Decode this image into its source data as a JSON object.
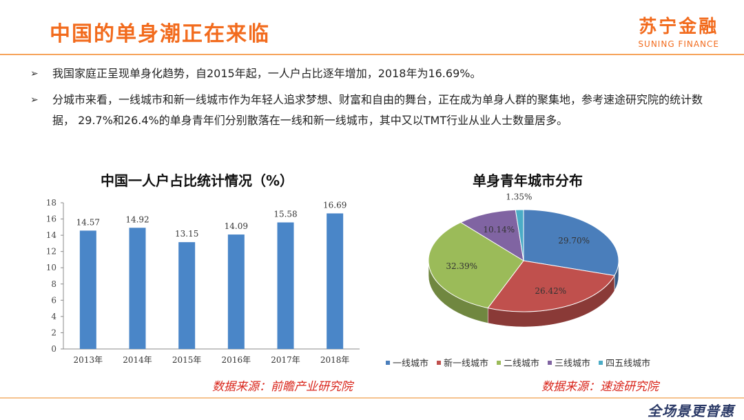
{
  "header": {
    "title": "中国的单身潮正在来临",
    "logo_cn": "苏宁金融",
    "logo_en": "SUNING FINANCE"
  },
  "bullets": [
    {
      "mark": "➢",
      "text": "我国家庭正呈现单身化趋势，自2015年起，一人户占比逐年增加，2018年为16.69%。"
    },
    {
      "mark": "➢",
      "text": "分城市来看，一线城市和新一线城市作为年轻人追求梦想、财富和自由的舞台，正在成为单身人群的聚集地，参考速途研究院的统计数据， 29.7%和26.4%的单身青年们分别散落在一线和新一线城市，其中又以TMT行业从业人士数量居多。"
    }
  ],
  "chart_data": [
    {
      "type": "bar",
      "title": "中国一人户占比统计情况（%）",
      "categories": [
        "2013年",
        "2014年",
        "2015年",
        "2016年",
        "2017年",
        "2018年"
      ],
      "values": [
        14.57,
        14.92,
        13.15,
        14.09,
        15.58,
        16.69
      ],
      "data_labels": [
        "14.57",
        "14.92",
        "13.15",
        "14.09",
        "15.58",
        "16.69"
      ],
      "ylim": [
        0,
        18
      ],
      "yticks": [
        "0",
        "2",
        "4",
        "6",
        "8",
        "10",
        "12",
        "14",
        "16",
        "18"
      ],
      "grid": false,
      "color": "#4a86c8",
      "source": "数据来源：前瞻产业研究院"
    },
    {
      "type": "pie",
      "title": "单身青年城市分布",
      "labels": [
        "一线城市",
        "新一线城市",
        "二线城市",
        "三线城市",
        "四五线城市"
      ],
      "values": [
        29.7,
        26.42,
        32.39,
        10.14,
        1.35
      ],
      "data_labels": [
        "29.70%",
        "26.42%",
        "32.39%",
        "10.14%",
        "1.35%"
      ],
      "colors": [
        "#4a7ebb",
        "#c0504d",
        "#9bbb59",
        "#8064a2",
        "#4bacc6"
      ],
      "legend_position": "bottom",
      "source": "数据来源：速途研究院"
    }
  ],
  "footer": {
    "brand": "全场景更普惠"
  }
}
